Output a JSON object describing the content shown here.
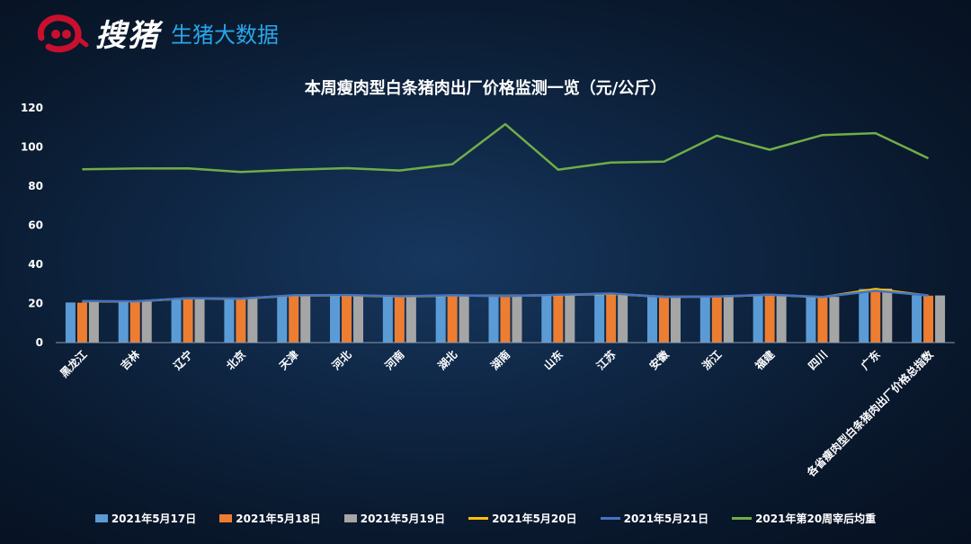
{
  "brand": {
    "logo_text": "搜猪",
    "subtitle": "生猪大数据",
    "logo_color": "#c8102e"
  },
  "chart_data": {
    "type": "bar",
    "title": "本周瘦肉型白条猪肉出厂价格监测一览（元/公斤）",
    "ylim": [
      0,
      120
    ],
    "yticks": [
      0,
      20,
      40,
      60,
      80,
      100,
      120
    ],
    "grid": false,
    "legend_position": "bottom",
    "categories": [
      "黑龙江",
      "吉林",
      "辽宁",
      "北京",
      "天津",
      "河北",
      "河南",
      "湖北",
      "湖南",
      "山东",
      "江苏",
      "安徽",
      "浙江",
      "福建",
      "四川",
      "广东",
      "各省瘦肉型白条猪肉出厂价格总指数"
    ],
    "series": [
      {
        "name": "2021年5月17日",
        "kind": "bar",
        "color": "#5b9bd5",
        "values": [
          20.5,
          20.8,
          22.6,
          22.3,
          24.1,
          24.3,
          23.7,
          24.1,
          24.3,
          24.1,
          25.2,
          23.6,
          23.4,
          24.3,
          23.6,
          27.4,
          24.2
        ]
      },
      {
        "name": "2021年5月18日",
        "kind": "bar",
        "color": "#ed7d31",
        "values": [
          20.4,
          20.6,
          22.5,
          22.1,
          24.0,
          24.1,
          23.5,
          24.0,
          23.6,
          24.0,
          24.9,
          23.2,
          23.3,
          24.2,
          23.3,
          27.0,
          24.0
        ]
      },
      {
        "name": "2021年5月19日",
        "kind": "bar",
        "color": "#a5a5a5",
        "values": [
          21.0,
          21.2,
          22.8,
          22.6,
          24.2,
          24.4,
          23.8,
          24.2,
          23.9,
          24.3,
          25.0,
          23.5,
          23.6,
          24.4,
          23.4,
          27.6,
          24.1
        ]
      },
      {
        "name": "2021年5月20日",
        "kind": "line",
        "color": "#ffc000",
        "values": [
          21.1,
          21.0,
          22.6,
          22.4,
          24.1,
          24.2,
          23.6,
          24.1,
          23.9,
          24.3,
          24.9,
          23.4,
          23.5,
          24.4,
          23.2,
          27.4,
          24.0
        ]
      },
      {
        "name": "2021年5月21日",
        "kind": "line",
        "color": "#4472c4",
        "values": [
          21.2,
          21.1,
          22.7,
          22.5,
          24.2,
          24.3,
          23.7,
          24.2,
          23.8,
          24.4,
          25.1,
          23.3,
          23.6,
          24.5,
          23.3,
          26.5,
          24.1
        ]
      },
      {
        "name": "2021年第20周宰后均重",
        "kind": "line",
        "color": "#70ad47",
        "values": [
          88.6,
          89.0,
          89.1,
          87.2,
          88.4,
          89.2,
          88.0,
          91.2,
          111.7,
          88.4,
          92.1,
          92.5,
          105.8,
          98.6,
          106.1,
          107.1,
          94.2
        ]
      }
    ]
  }
}
